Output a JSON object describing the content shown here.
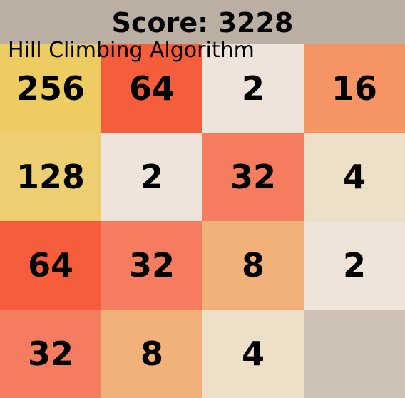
{
  "header": {
    "score_label": "Score: 3228"
  },
  "algorithm_label": "Hill Climbing Algorithm",
  "colors": {
    "header_bg": "#bbafa3",
    "empty": "#cdc1b4",
    "2": "#eee4da",
    "4": "#ede0c8",
    "8": "#f2b179",
    "16": "#f59563",
    "32": "#f67c5f",
    "64": "#f65e3b",
    "128": "#edcf72",
    "256": "#edcc61"
  },
  "board": {
    "rows": [
      [
        "256",
        "64",
        "2",
        "16"
      ],
      [
        "128",
        "2",
        "32",
        "4"
      ],
      [
        "64",
        "32",
        "8",
        "2"
      ],
      [
        "32",
        "8",
        "4",
        ""
      ]
    ]
  }
}
